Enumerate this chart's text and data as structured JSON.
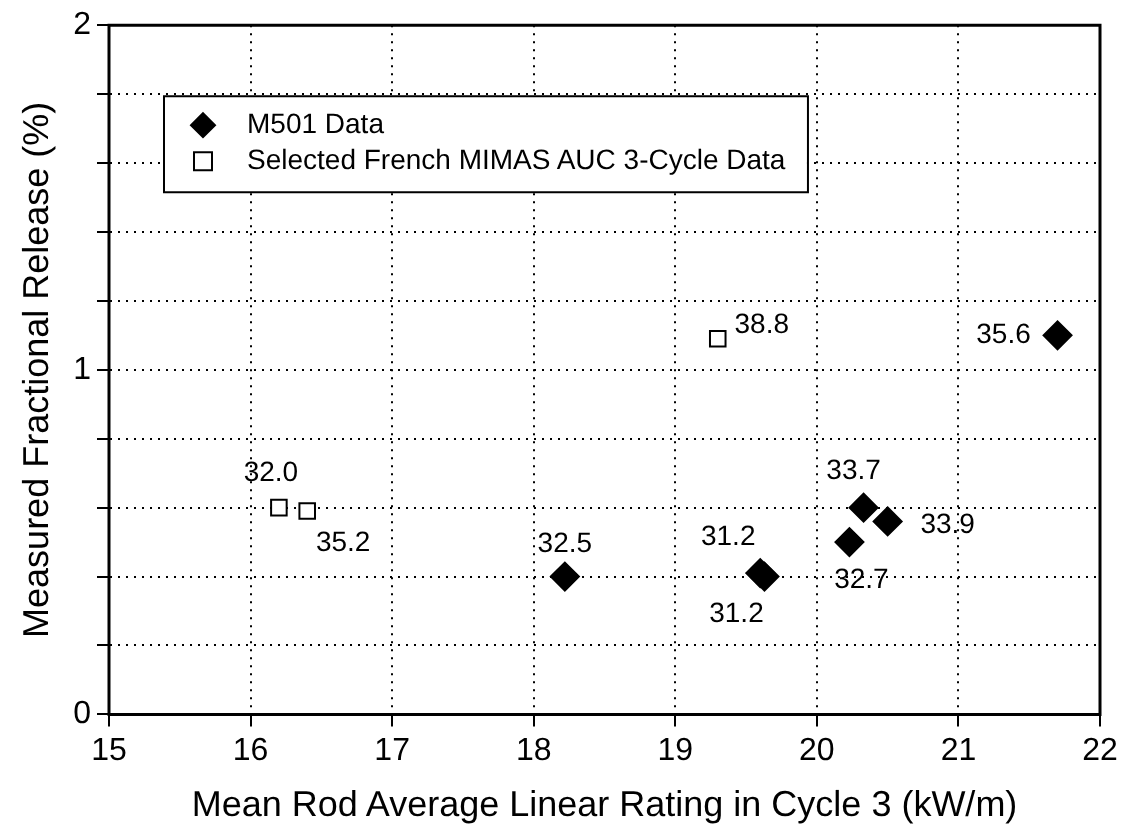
{
  "chart_data": {
    "type": "scatter",
    "xlabel": "Mean Rod Average Linear Rating in Cycle 3 (kW/m)",
    "ylabel": "Measured Fractional Release (%)",
    "xlim": [
      15,
      22
    ],
    "xticks": [
      15,
      16,
      17,
      18,
      19,
      20,
      21,
      22
    ],
    "ylim": [
      0,
      2
    ],
    "yticks": [
      0,
      {
        "value": 0.2,
        "label": null
      },
      {
        "value": 0.4,
        "label": null
      },
      {
        "value": 0.6,
        "label": null
      },
      {
        "value": 0.8,
        "label": null
      },
      1,
      {
        "value": 1.2,
        "label": null
      },
      {
        "value": 1.4,
        "label": null
      },
      {
        "value": 1.6,
        "label": null
      },
      {
        "value": 1.8,
        "label": null
      },
      2
    ],
    "grid": true,
    "legend": "top left",
    "annotations": [
      {
        "text": "32.5",
        "x": 18.22,
        "y": 0.4
      },
      {
        "text": "31.2",
        "x": 19.6,
        "y": 0.41
      },
      {
        "text": "31.2",
        "x": 19.63,
        "y": 0.4
      },
      {
        "text": "32.7",
        "x": 20.23,
        "y": 0.5
      },
      {
        "text": "33.7",
        "x": 20.33,
        "y": 0.6
      },
      {
        "text": "33.9",
        "x": 20.5,
        "y": 0.56
      },
      {
        "text": "35.6",
        "x": 21.7,
        "y": 1.1
      },
      {
        "text": "32.0",
        "x": 16.2,
        "y": 0.6
      },
      {
        "text": "35.2",
        "x": 16.4,
        "y": 0.59
      },
      {
        "text": "38.8",
        "x": 19.3,
        "y": 1.09
      }
    ],
    "series": [
      {
        "name": "M501 Data",
        "color": "#000000",
        "marker": "diamond",
        "x": [
          18.22,
          19.6,
          19.63,
          20.23,
          20.33,
          20.5,
          21.7
        ],
        "values": [
          0.4,
          0.41,
          0.4,
          0.5,
          0.6,
          0.56,
          1.1
        ]
      },
      {
        "name": "Selected French MIMAS AUC 3-Cycle Data",
        "color": "#000000",
        "marker": "square",
        "x": [
          16.2,
          16.4,
          19.3
        ],
        "values": [
          0.6,
          0.59,
          1.09
        ]
      }
    ]
  }
}
